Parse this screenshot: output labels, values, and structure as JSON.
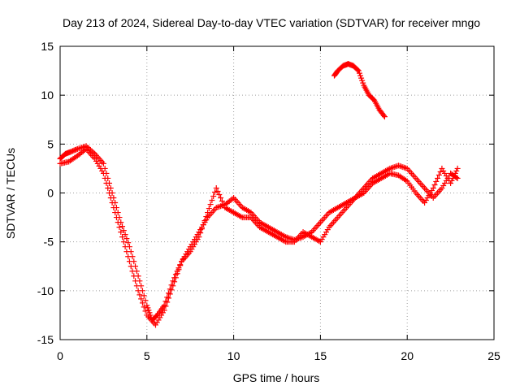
{
  "chart_data": {
    "type": "scatter",
    "title": "Day 213 of 2024, Sidereal Day-to-day VTEC variation (SDTVAR) for receiver mngo",
    "xlabel": "GPS time / hours",
    "ylabel": "SDTVAR / TECUs",
    "xlim": [
      0,
      25
    ],
    "ylim": [
      -15,
      15
    ],
    "xticks": [
      0,
      5,
      10,
      15,
      20,
      25
    ],
    "yticks": [
      -15,
      -10,
      -5,
      0,
      5,
      10,
      15
    ],
    "xtick_labels": [
      "0",
      "5",
      "10",
      "15",
      "20",
      "25"
    ],
    "ytick_labels": [
      "-15",
      "-10",
      "-5",
      "0",
      "5",
      "10",
      "15"
    ],
    "grid": true,
    "marker": "+",
    "color": "#ff0000",
    "series": [
      {
        "name": "main",
        "x": [
          0.0,
          0.3,
          0.6,
          1.0,
          1.5,
          2.0,
          2.5,
          3.0,
          3.5,
          4.0,
          4.5,
          5.0,
          5.3,
          5.6,
          6.0,
          6.5,
          7.0,
          7.5,
          8.0,
          8.5,
          9.0,
          9.5,
          10.0,
          10.5,
          11.0,
          11.5,
          12.0,
          12.5,
          13.0,
          13.5,
          14.0,
          14.5,
          15.0,
          15.5,
          16.0,
          16.5,
          17.0,
          17.5,
          18.0,
          18.5,
          19.0,
          19.5,
          20.0,
          20.5,
          21.0,
          21.5,
          22.0,
          22.5,
          22.9
        ],
        "y": [
          3.5,
          4.0,
          4.2,
          4.5,
          4.8,
          4.0,
          3.0,
          0.0,
          -3.0,
          -5.5,
          -8.5,
          -11.5,
          -13.0,
          -12.5,
          -11.5,
          -9.0,
          -7.0,
          -5.5,
          -4.0,
          -2.5,
          -1.5,
          -1.2,
          -0.5,
          -1.5,
          -2.0,
          -3.0,
          -3.5,
          -4.0,
          -4.5,
          -4.8,
          -4.5,
          -4.0,
          -3.0,
          -2.0,
          -1.5,
          -1.0,
          -0.5,
          0.5,
          1.5,
          2.0,
          2.5,
          2.8,
          2.5,
          1.5,
          0.5,
          -0.5,
          0.5,
          2.0,
          1.5
        ]
      },
      {
        "name": "secondary",
        "x": [
          0.0,
          0.5,
          1.0,
          1.5,
          2.0,
          2.5,
          3.0,
          3.5,
          4.0,
          4.5,
          5.0,
          5.5,
          6.0,
          6.5,
          7.0,
          7.5,
          8.0,
          8.5,
          9.0,
          9.5,
          10.0,
          10.5,
          11.0,
          11.5,
          12.0,
          12.5,
          13.0,
          13.5,
          14.0,
          14.5,
          15.0,
          15.5,
          16.0,
          16.5,
          17.0,
          17.5,
          18.0,
          18.5,
          19.0,
          19.5,
          20.0,
          20.5,
          21.0,
          21.5,
          22.0,
          22.5,
          22.9
        ],
        "y": [
          3.0,
          3.2,
          3.8,
          4.5,
          3.5,
          2.0,
          -1.0,
          -4.0,
          -7.0,
          -10.0,
          -12.5,
          -13.5,
          -12.0,
          -9.5,
          -7.0,
          -6.0,
          -4.5,
          -2.0,
          0.5,
          -1.5,
          -2.0,
          -2.5,
          -2.5,
          -3.5,
          -4.0,
          -4.5,
          -5.0,
          -5.0,
          -4.0,
          -4.5,
          -5.0,
          -3.5,
          -2.5,
          -1.5,
          -0.5,
          0.0,
          1.0,
          1.5,
          2.0,
          1.8,
          1.2,
          0.0,
          -1.0,
          0.5,
          2.5,
          1.0,
          2.5
        ]
      },
      {
        "name": "upper segment",
        "x": [
          15.8,
          16.0,
          16.3,
          16.6,
          16.9,
          17.2,
          17.5,
          17.8,
          18.1,
          18.4,
          18.7
        ],
        "y": [
          12.0,
          12.5,
          13.0,
          13.2,
          13.0,
          12.5,
          11.0,
          10.0,
          9.5,
          8.5,
          7.8
        ]
      }
    ]
  }
}
